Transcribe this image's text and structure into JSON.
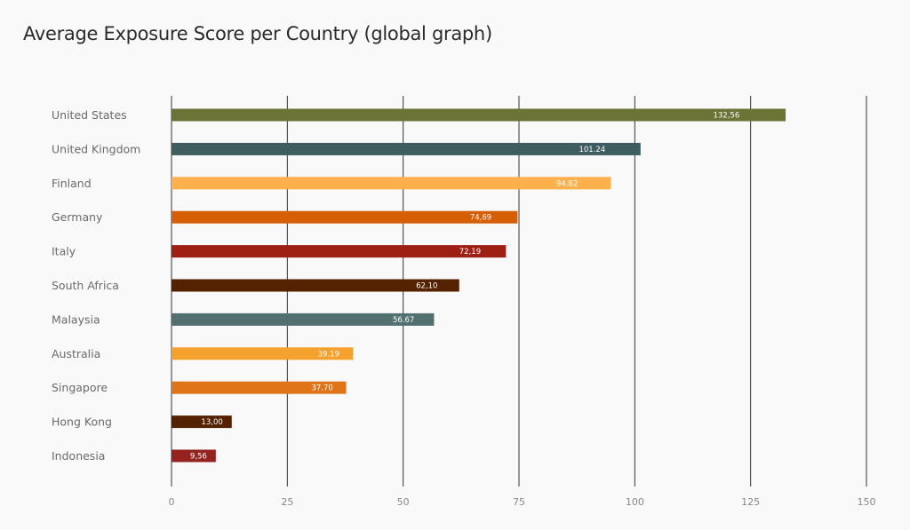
{
  "chart_data": {
    "type": "bar",
    "orientation": "horizontal",
    "title": "Average Exposure Score per Country (global graph)",
    "xlabel": "",
    "ylabel": "",
    "xlim": [
      0,
      150
    ],
    "xticks": [
      "0",
      "25",
      "50",
      "75",
      "100",
      "125",
      "150"
    ],
    "grid": true,
    "categories": [
      "United States",
      "United Kingdom",
      "Finland",
      "Germany",
      "Italy",
      "South Africa",
      "Malaysia",
      "Australia",
      "Singapore",
      "Hong Kong",
      "Indonesia"
    ],
    "values": [
      132.56,
      101.24,
      94.82,
      74.69,
      72.19,
      62.1,
      56.67,
      39.19,
      37.7,
      13.0,
      9.56
    ],
    "data_labels": [
      "132,56",
      "101.24",
      "94.82",
      "74,69",
      "72,19",
      "62,10",
      "56.67",
      "39.19",
      "37.70",
      "13,00",
      "9,56"
    ],
    "colors": [
      "#6b7337",
      "#3e5d5e",
      "#fdb04b",
      "#d45f06",
      "#9e1f14",
      "#552200",
      "#52706f",
      "#f5a12e",
      "#e07419",
      "#552200",
      "#942320"
    ]
  }
}
